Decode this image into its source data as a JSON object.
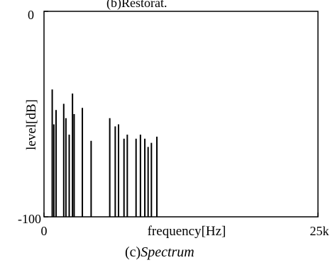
{
  "top_caption": "(b)Restorat.",
  "bottom_caption_prefix": "(c)",
  "bottom_caption_italic": "Spectrum",
  "chart_data": {
    "type": "bar",
    "title": "",
    "xlabel": "frequency[Hz]",
    "ylabel": "level[dB]",
    "xlim": [
      0,
      25000
    ],
    "ylim": [
      -100,
      0
    ],
    "x_tick_labels": [
      "0",
      "25k"
    ],
    "y_tick_labels": [
      "0",
      "-100"
    ],
    "grid": false,
    "series": [
      {
        "x": [
          750,
          900,
          1100,
          1800,
          2000,
          2300,
          2600,
          2750,
          3500,
          4300,
          6000,
          6500,
          6800,
          7300,
          7600,
          8400,
          8800,
          9200,
          9500,
          9800,
          10300
        ],
        "values": [
          -38,
          -55,
          -48,
          -45,
          -52,
          -60,
          -40,
          -50,
          -47,
          -63,
          -52,
          -56,
          -55,
          -62,
          -60,
          -62,
          -60,
          -62,
          -66,
          -64,
          -61
        ]
      }
    ]
  }
}
